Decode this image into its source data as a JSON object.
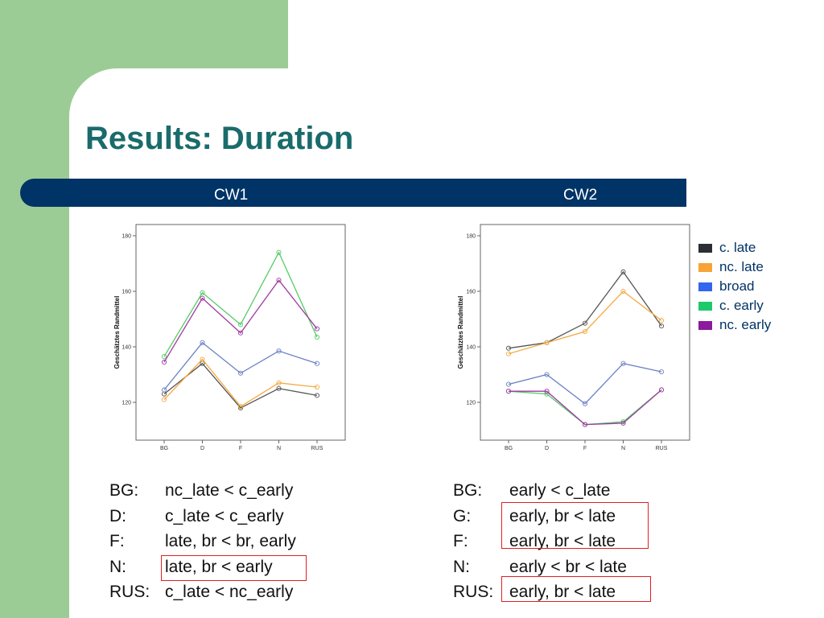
{
  "slide": {
    "title": "Results: Duration"
  },
  "band": {
    "left_label": "CW1",
    "right_label": "CW2"
  },
  "legend": [
    {
      "label": "c. late",
      "color": "#2b2f33"
    },
    {
      "label": "nc. late",
      "color": "#f7a336"
    },
    {
      "label": "broad",
      "color": "#3366ee"
    },
    {
      "label": "c. early",
      "color": "#1ec96b"
    },
    {
      "label": "nc. early",
      "color": "#8b1a9c"
    }
  ],
  "chart_data": [
    {
      "type": "line",
      "panel": "CW1",
      "ylabel": "Geschätztes Randmittel",
      "categories": [
        "BG",
        "D",
        "F",
        "N",
        "RUS"
      ],
      "yticks": [
        120,
        140,
        160,
        180
      ],
      "ylim": [
        112,
        185
      ],
      "series": [
        {
          "name": "c. late",
          "color": "#555555",
          "values": [
            123,
            134,
            118,
            125,
            122.5
          ]
        },
        {
          "name": "nc. late",
          "color": "#f5a840",
          "values": [
            121,
            135.5,
            118.5,
            127,
            125.5
          ]
        },
        {
          "name": "broad",
          "color": "#6b80c4",
          "values": [
            124.5,
            141.5,
            130.5,
            138.5,
            134
          ]
        },
        {
          "name": "c. early",
          "color": "#55cc66",
          "values": [
            136.5,
            159.5,
            148,
            174,
            143.5
          ]
        },
        {
          "name": "nc. early",
          "color": "#9e3aa2",
          "values": [
            134.5,
            157.5,
            145,
            164,
            146.5
          ]
        }
      ]
    },
    {
      "type": "line",
      "panel": "CW2",
      "ylabel": "Geschätztes Randmittel",
      "categories": [
        "BG",
        "D",
        "F",
        "N",
        "RUS"
      ],
      "yticks": [
        120,
        140,
        160,
        180
      ],
      "ylim": [
        112,
        185
      ],
      "series": [
        {
          "name": "c. late",
          "color": "#555555",
          "values": [
            139.5,
            141.5,
            148.5,
            167,
            147.5
          ]
        },
        {
          "name": "nc. late",
          "color": "#f5a840",
          "values": [
            137.5,
            141.5,
            145.5,
            160,
            149.5
          ]
        },
        {
          "name": "broad",
          "color": "#6b80c4",
          "values": [
            126.5,
            130,
            119.5,
            134,
            131
          ]
        },
        {
          "name": "c. early",
          "color": "#55cc66",
          "values": [
            124,
            123,
            112,
            113,
            124.5
          ]
        },
        {
          "name": "nc. early",
          "color": "#9e3aa2",
          "values": [
            124,
            124,
            112,
            112.5,
            124.5
          ]
        }
      ]
    }
  ],
  "results_left": [
    {
      "code": "BG:",
      "text": "nc_late < c_early"
    },
    {
      "code": "D:",
      "text": "c_late < c_early"
    },
    {
      "code": "F:",
      "text": "late, br < br, early"
    },
    {
      "code": "N:",
      "text": "late, br < early"
    },
    {
      "code": "RUS:",
      "text": "c_late < nc_early"
    }
  ],
  "results_right": [
    {
      "code": "BG:",
      "text": "early < c_late"
    },
    {
      "code": "G:",
      "text": "early, br < late"
    },
    {
      "code": "F:",
      "text": "early, br < late"
    },
    {
      "code": "N:",
      "text": "early < br < late"
    },
    {
      "code": "RUS:",
      "text": "early, br < late"
    }
  ]
}
